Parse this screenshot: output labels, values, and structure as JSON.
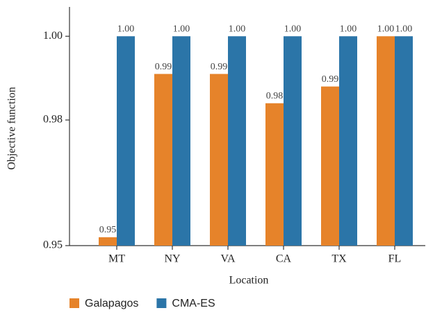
{
  "chart_data": {
    "type": "bar",
    "x_label": "Location",
    "y_label": "Objective function",
    "categories": [
      "MT",
      "NY",
      "VA",
      "CA",
      "TX",
      "FL"
    ],
    "series": [
      {
        "name": "Galapagos",
        "color": "#e6832a",
        "values": [
          0.952,
          0.991,
          0.991,
          0.984,
          0.988,
          1.0
        ],
        "value_labels": [
          "0.95",
          "0.99",
          "0.99",
          "0.98",
          "0.99",
          "1.00"
        ]
      },
      {
        "name": "CMA-ES",
        "color": "#2b75a8",
        "values": [
          1.0,
          1.0,
          1.0,
          1.0,
          1.0,
          1.0
        ],
        "value_labels": [
          "1.00",
          "1.00",
          "1.00",
          "1.00",
          "1.00",
          "1.00"
        ]
      }
    ],
    "ylim": [
      0.95,
      1.007
    ],
    "yticks": [
      0.95,
      0.98,
      {
        "value": 1.0,
        "label": "1.00"
      }
    ],
    "grid": false,
    "legend": "bottom"
  }
}
